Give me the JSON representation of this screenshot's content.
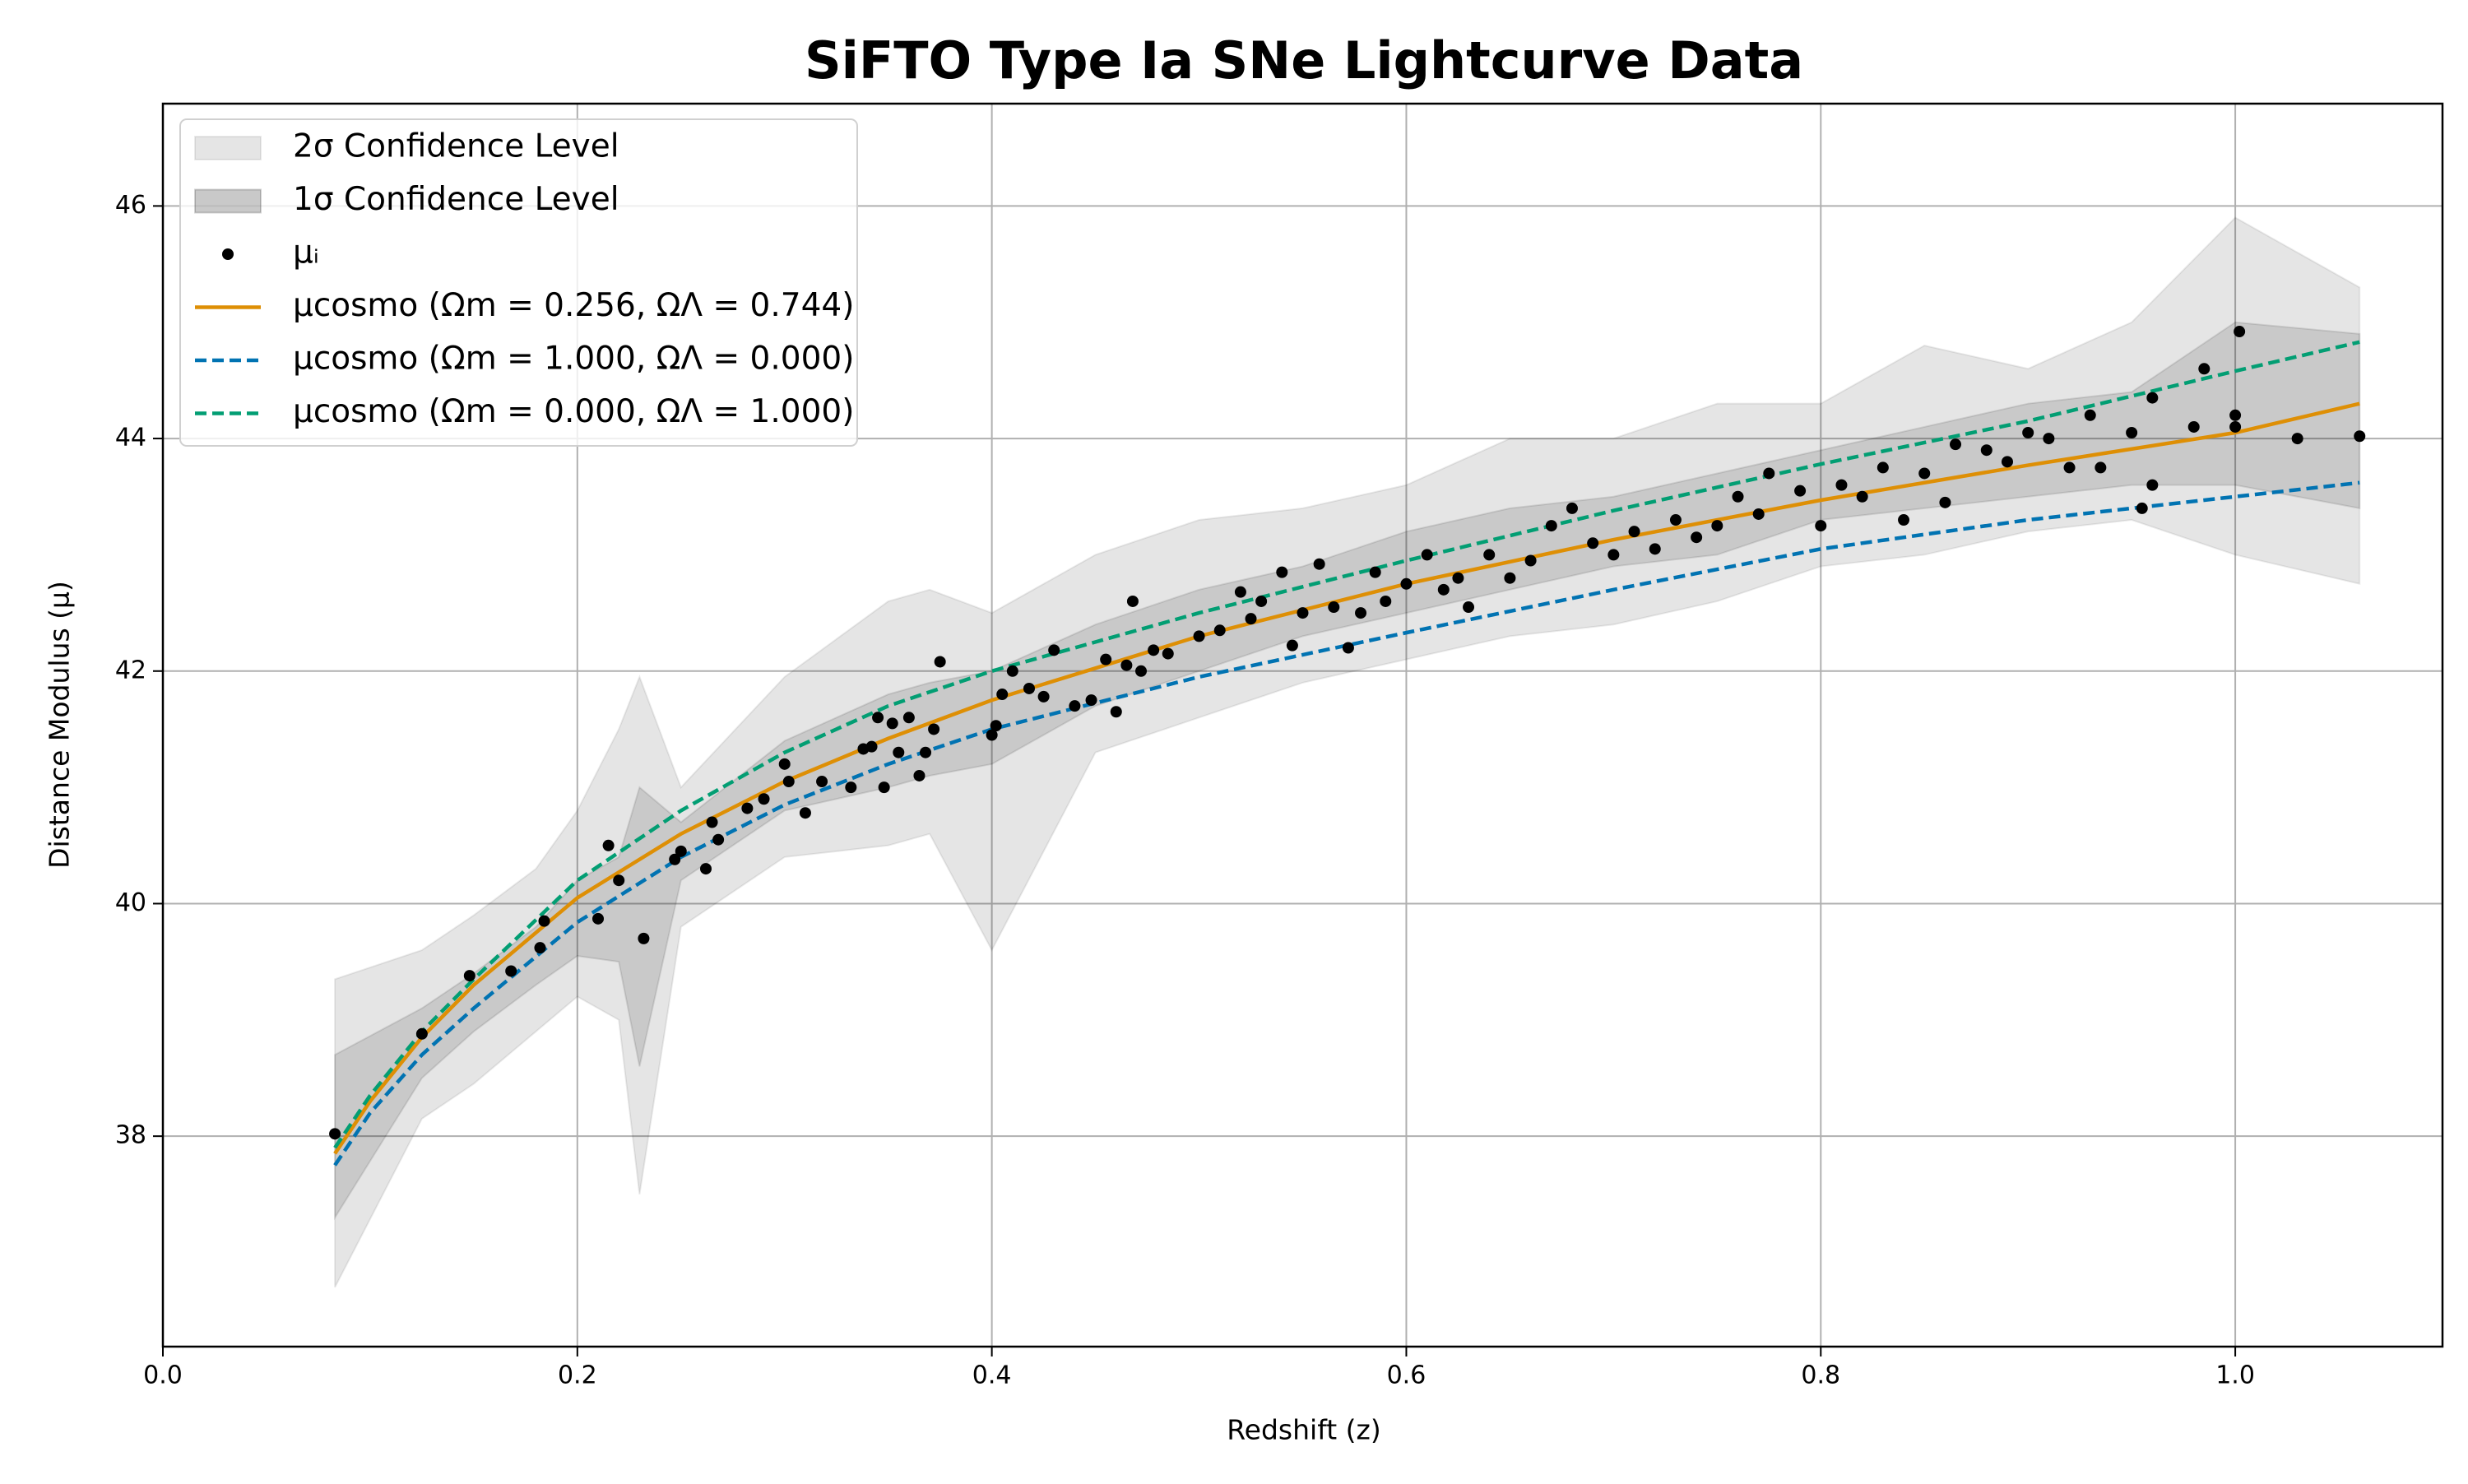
{
  "chart_data": {
    "type": "scatter",
    "title": "SiFTO Type Ia SNe Lightcurve Data",
    "x_label": "Redshift (z)",
    "y_label": "Distance Modulus (μ)",
    "xlim": [
      0,
      1.1
    ],
    "ylim": [
      36.19,
      46.88
    ],
    "xticks": [
      {
        "value": 0,
        "label": "0.0"
      },
      0.2,
      0.4,
      0.6,
      0.8,
      {
        "value": 1,
        "label": "1.0"
      }
    ],
    "yticks": [
      38,
      40,
      42,
      44,
      46
    ],
    "grid": true,
    "legend": "upper left",
    "bands": [
      {
        "name": "2σ Confidence Level",
        "color": "#000000",
        "x": [
          0.083,
          0.125,
          0.15,
          0.18,
          0.2,
          0.22,
          0.23,
          0.25,
          0.3,
          0.35,
          0.37,
          0.4,
          0.45,
          0.5,
          0.55,
          0.6,
          0.65,
          0.7,
          0.75,
          0.8,
          0.85,
          0.9,
          0.95,
          1.0,
          1.06
        ],
        "upper": [
          39.35,
          39.6,
          39.9,
          40.3,
          40.8,
          41.5,
          41.95,
          41.0,
          41.95,
          42.6,
          42.7,
          42.5,
          43.0,
          43.3,
          43.4,
          43.6,
          44.0,
          44.0,
          44.3,
          44.3,
          44.8,
          44.6,
          45.0,
          45.9,
          45.3
        ],
        "lower": [
          36.7,
          38.15,
          38.45,
          38.9,
          39.2,
          39.0,
          37.5,
          39.8,
          40.4,
          40.5,
          40.6,
          39.6,
          41.3,
          41.6,
          41.9,
          42.1,
          42.3,
          42.4,
          42.6,
          42.9,
          43.0,
          43.2,
          43.3,
          43.0,
          42.75
        ]
      },
      {
        "name": "1σ Confidence Level",
        "color": "#000000",
        "x": [
          0.083,
          0.125,
          0.15,
          0.18,
          0.2,
          0.22,
          0.23,
          0.25,
          0.3,
          0.35,
          0.37,
          0.4,
          0.45,
          0.5,
          0.55,
          0.6,
          0.65,
          0.7,
          0.75,
          0.8,
          0.85,
          0.9,
          0.95,
          1.0,
          1.06
        ],
        "upper": [
          38.7,
          39.1,
          39.4,
          39.8,
          40.2,
          40.4,
          41.0,
          40.7,
          41.4,
          41.8,
          41.9,
          42.0,
          42.4,
          42.7,
          42.9,
          43.2,
          43.4,
          43.5,
          43.7,
          43.9,
          44.1,
          44.3,
          44.4,
          45.0,
          44.9
        ],
        "lower": [
          37.3,
          38.5,
          38.9,
          39.3,
          39.55,
          39.5,
          38.6,
          40.2,
          40.8,
          41.0,
          41.1,
          41.2,
          41.7,
          42.0,
          42.3,
          42.5,
          42.7,
          42.9,
          43.0,
          43.3,
          43.4,
          43.5,
          43.6,
          43.6,
          43.4
        ]
      }
    ],
    "points": {
      "name": "μᵢ",
      "color": "#000000",
      "x": [
        0.083,
        0.125,
        0.148,
        0.168,
        0.182,
        0.184,
        0.21,
        0.215,
        0.22,
        0.232,
        0.247,
        0.25,
        0.262,
        0.265,
        0.268,
        0.282,
        0.29,
        0.3,
        0.302,
        0.31,
        0.318,
        0.332,
        0.338,
        0.342,
        0.345,
        0.348,
        0.352,
        0.355,
        0.36,
        0.365,
        0.368,
        0.372,
        0.375,
        0.4,
        0.402,
        0.405,
        0.41,
        0.418,
        0.425,
        0.43,
        0.44,
        0.448,
        0.455,
        0.46,
        0.465,
        0.468,
        0.472,
        0.478,
        0.485,
        0.5,
        0.51,
        0.52,
        0.525,
        0.53,
        0.54,
        0.545,
        0.55,
        0.558,
        0.565,
        0.572,
        0.578,
        0.585,
        0.59,
        0.6,
        0.61,
        0.618,
        0.625,
        0.63,
        0.64,
        0.65,
        0.66,
        0.67,
        0.68,
        0.69,
        0.7,
        0.71,
        0.72,
        0.73,
        0.74,
        0.75,
        0.76,
        0.77,
        0.775,
        0.79,
        0.8,
        0.81,
        0.82,
        0.83,
        0.84,
        0.85,
        0.86,
        0.865,
        0.88,
        0.89,
        0.9,
        0.91,
        0.92,
        0.93,
        0.935,
        0.95,
        0.955,
        0.96,
        0.96,
        0.98,
        0.985,
        1.0,
        1.0,
        1.002,
        1.03,
        1.06
      ],
      "values": [
        38.02,
        38.88,
        39.38,
        39.42,
        39.62,
        39.85,
        39.87,
        40.5,
        40.2,
        39.7,
        40.38,
        40.45,
        40.3,
        40.7,
        40.55,
        40.82,
        40.9,
        41.2,
        41.05,
        40.78,
        41.05,
        41.0,
        41.33,
        41.35,
        41.6,
        41.0,
        41.55,
        41.3,
        41.6,
        41.1,
        41.3,
        41.5,
        42.08,
        41.45,
        41.53,
        41.8,
        42.0,
        41.85,
        41.78,
        42.18,
        41.7,
        41.75,
        42.1,
        41.65,
        42.05,
        42.6,
        42.0,
        42.18,
        42.15,
        42.3,
        42.35,
        42.68,
        42.45,
        42.6,
        42.85,
        42.22,
        42.5,
        42.92,
        42.55,
        42.2,
        42.5,
        42.85,
        42.6,
        42.75,
        43.0,
        42.7,
        42.8,
        42.55,
        43.0,
        42.8,
        42.95,
        43.25,
        43.4,
        43.1,
        43.0,
        43.2,
        43.05,
        43.3,
        43.15,
        43.25,
        43.5,
        43.35,
        43.7,
        43.55,
        43.25,
        43.6,
        43.5,
        43.75,
        43.3,
        43.7,
        43.45,
        43.95,
        43.9,
        43.8,
        44.05,
        44.0,
        43.75,
        44.2,
        43.75,
        44.05,
        43.4,
        44.35,
        43.6,
        44.1,
        44.6,
        44.2,
        44.1,
        44.92,
        44.0,
        44.02
      ]
    },
    "series": [
      {
        "name": "μcosmo (Ωm = 0.256, ΩΛ = 0.744)",
        "color": "#de8f05",
        "dashed": false,
        "x": [
          0.083,
          0.1,
          0.125,
          0.15,
          0.2,
          0.25,
          0.3,
          0.35,
          0.4,
          0.5,
          0.6,
          0.7,
          0.8,
          0.9,
          1.0,
          1.06
        ],
        "values": [
          37.85,
          38.3,
          38.85,
          39.3,
          40.05,
          40.6,
          41.05,
          41.42,
          41.75,
          42.3,
          42.75,
          43.13,
          43.47,
          43.77,
          44.05,
          44.3
        ]
      },
      {
        "name": "μcosmo (Ωm = 1.000, ΩΛ = 0.000)",
        "color": "#0173b2",
        "dashed": true,
        "x": [
          0.083,
          0.1,
          0.125,
          0.15,
          0.2,
          0.25,
          0.3,
          0.35,
          0.4,
          0.5,
          0.6,
          0.7,
          0.8,
          0.9,
          1.0,
          1.06
        ],
        "values": [
          37.75,
          38.2,
          38.7,
          39.1,
          39.84,
          40.4,
          40.85,
          41.2,
          41.5,
          41.95,
          42.33,
          42.7,
          43.05,
          43.3,
          43.5,
          43.62
        ]
      },
      {
        "name": "μcosmo (Ωm = 0.000, ΩΛ = 1.000)",
        "color": "#029e73",
        "dashed": true,
        "x": [
          0.083,
          0.1,
          0.125,
          0.15,
          0.2,
          0.25,
          0.3,
          0.35,
          0.4,
          0.5,
          0.6,
          0.7,
          0.8,
          0.9,
          1.0,
          1.06
        ],
        "values": [
          37.9,
          38.35,
          38.9,
          39.35,
          40.2,
          40.8,
          41.3,
          41.7,
          42.0,
          42.5,
          42.95,
          43.38,
          43.78,
          44.15,
          44.58,
          44.83
        ]
      }
    ]
  }
}
